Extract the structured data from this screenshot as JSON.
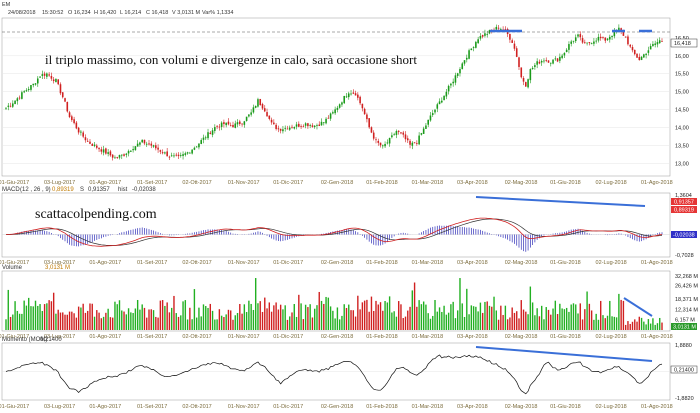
{
  "header": {
    "symbol": "EM",
    "date": "24/08/2018",
    "time": "15:30:52",
    "open": "O 16,234",
    "high": "H 16,420",
    "low": "L 16,214",
    "close": "C 16,418",
    "volume": "V 3,0131 M",
    "var": "Var% 1,1334"
  },
  "annotation": "il triplo massimo, con volumi e divergenze in calo, sarà occasione short",
  "watermark": "scattacolpending.com",
  "chart_data": [
    {
      "type": "candlestick",
      "panel": "price",
      "x_labels": [
        "01-Giu-2017",
        "03-Lug-2017",
        "01-Ago-2017",
        "01-Set-2017",
        "02-Ott-2017",
        "01-Nov-2017",
        "01-Dic-2017",
        "02-Gen-2018",
        "01-Feb-2018",
        "01-Mar-2018",
        "03-Apr-2018",
        "02-Mag-2018",
        "01-Giu-2018",
        "02-Lug-2018",
        "01-Ago-2018"
      ],
      "y_ticks": [
        13.0,
        13.5,
        14.0,
        14.5,
        15.0,
        15.5,
        16.0,
        16.5
      ],
      "y_tick_labels": [
        "13,00",
        "13,50",
        "14,00",
        "14,50",
        "15,00",
        "15,50",
        "16,00",
        "16,50"
      ],
      "last_value_label": "16,418",
      "last_value": 16.418,
      "ylim": [
        12.7,
        17.0
      ],
      "resistance_level": 16.82,
      "close_path": [
        [
          0,
          14.55
        ],
        [
          4,
          14.75
        ],
        [
          8,
          15.0
        ],
        [
          12,
          15.2
        ],
        [
          15,
          15.45
        ],
        [
          18,
          15.5
        ],
        [
          22,
          15.3
        ],
        [
          25,
          14.85
        ],
        [
          28,
          14.3
        ],
        [
          32,
          13.9
        ],
        [
          36,
          13.6
        ],
        [
          40,
          13.45
        ],
        [
          44,
          13.3
        ],
        [
          48,
          13.15
        ],
        [
          52,
          13.25
        ],
        [
          56,
          13.45
        ],
        [
          60,
          13.6
        ],
        [
          64,
          13.5
        ],
        [
          68,
          13.35
        ],
        [
          72,
          13.2
        ],
        [
          76,
          13.15
        ],
        [
          80,
          13.3
        ],
        [
          84,
          13.5
        ],
        [
          88,
          13.75
        ],
        [
          92,
          14.0
        ],
        [
          96,
          14.1
        ],
        [
          100,
          14.05
        ],
        [
          104,
          14.15
        ],
        [
          108,
          14.4
        ],
        [
          111,
          14.75
        ],
        [
          114,
          14.5
        ],
        [
          117,
          14.1
        ],
        [
          120,
          13.95
        ],
        [
          124,
          14.0
        ],
        [
          128,
          14.05
        ],
        [
          132,
          14.1
        ],
        [
          136,
          14.05
        ],
        [
          140,
          14.15
        ],
        [
          144,
          14.4
        ],
        [
          148,
          14.75
        ],
        [
          151,
          15.0
        ],
        [
          154,
          14.95
        ],
        [
          157,
          14.55
        ],
        [
          160,
          14.0
        ],
        [
          163,
          13.6
        ],
        [
          166,
          13.45
        ],
        [
          169,
          13.65
        ],
        [
          172,
          13.9
        ],
        [
          175,
          13.75
        ],
        [
          178,
          13.5
        ],
        [
          181,
          13.6
        ],
        [
          184,
          13.95
        ],
        [
          187,
          14.3
        ],
        [
          190,
          14.6
        ],
        [
          193,
          14.9
        ],
        [
          196,
          15.2
        ],
        [
          199,
          15.55
        ],
        [
          202,
          15.9
        ],
        [
          205,
          16.2
        ],
        [
          208,
          16.5
        ],
        [
          211,
          16.6
        ],
        [
          214,
          16.7
        ],
        [
          217,
          16.8
        ],
        [
          220,
          16.7
        ],
        [
          223,
          16.4
        ],
        [
          225,
          16.0
        ],
        [
          227,
          15.4
        ],
        [
          229,
          15.2
        ],
        [
          231,
          15.6
        ],
        [
          234,
          15.8
        ],
        [
          237,
          15.9
        ],
        [
          240,
          15.85
        ],
        [
          243,
          15.9
        ],
        [
          246,
          16.1
        ],
        [
          249,
          16.4
        ],
        [
          252,
          16.55
        ],
        [
          255,
          16.3
        ],
        [
          258,
          16.4
        ],
        [
          261,
          16.5
        ],
        [
          264,
          16.45
        ],
        [
          267,
          16.6
        ],
        [
          270,
          16.75
        ],
        [
          273,
          16.5
        ],
        [
          276,
          16.1
        ],
        [
          279,
          15.9
        ],
        [
          282,
          16.1
        ],
        [
          285,
          16.3
        ],
        [
          288,
          16.42
        ]
      ]
    },
    {
      "type": "line",
      "panel": "macd",
      "title": "MACD",
      "params": "(12 , 26 , 9)",
      "legend": {
        "macd": "0,89319",
        "s": "0,91357",
        "hist": "-0,02038"
      },
      "y_tick_labels": [
        "1,3604",
        "-0,7028"
      ],
      "ylim": [
        -0.7028,
        1.3604
      ],
      "value_labels": [
        "0,91357",
        "0,89319",
        "-0,02038"
      ]
    },
    {
      "type": "bar",
      "panel": "volume",
      "title": "Volume",
      "last_value_text": "3,0131 M",
      "y_tick_labels": [
        "32,268 M",
        "26,426 M",
        "18,371 M",
        "12,314 M",
        "6,157 M"
      ],
      "y_ticks": [
        32.268,
        26.426,
        18.371,
        12.314,
        6.157
      ],
      "ylim": [
        0,
        34
      ]
    },
    {
      "type": "line",
      "panel": "momentum",
      "title": "Momento (MOM)",
      "last_value_text": "0,21400",
      "y_tick_labels": [
        "1,8880",
        "-1,8820"
      ],
      "ylim": [
        -1.882,
        1.888
      ]
    }
  ]
}
